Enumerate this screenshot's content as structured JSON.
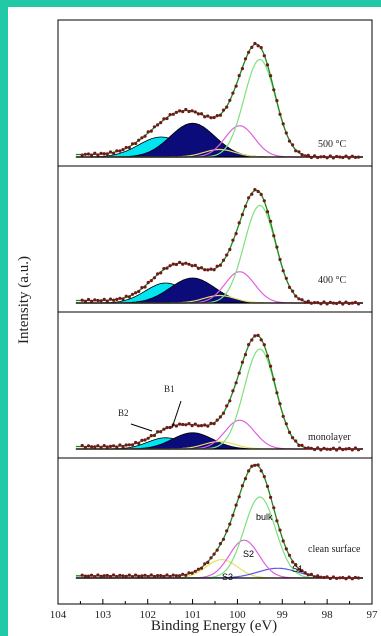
{
  "chart_data": {
    "type": "line",
    "xlabel": "Binding Energy (eV)",
    "ylabel": "Intensity (a.u.)",
    "xlim": [
      104,
      97
    ],
    "x_reversed": true,
    "x_ticks": [
      "104",
      "103",
      "102",
      "101",
      "100",
      "99",
      "98",
      "97"
    ],
    "grid": false,
    "panels": [
      {
        "label": "500 °C",
        "components": {
          "bulk": {
            "center": 99.5,
            "height": 0.78,
            "width": 0.35
          },
          "S2": {
            "center": 99.95,
            "height": 0.25,
            "width": 0.33
          },
          "S3": {
            "center": 100.4,
            "height": 0.06,
            "width": 0.35
          },
          "B1": {
            "center": 101.0,
            "height": 0.27,
            "width": 0.5
          },
          "B2": {
            "center": 101.7,
            "height": 0.16,
            "width": 0.5
          }
        }
      },
      {
        "label": "400 °C",
        "components": {
          "bulk": {
            "center": 99.5,
            "height": 0.78,
            "width": 0.35
          },
          "S2": {
            "center": 99.95,
            "height": 0.25,
            "width": 0.33
          },
          "S3": {
            "center": 100.4,
            "height": 0.06,
            "width": 0.35
          },
          "B1": {
            "center": 101.0,
            "height": 0.2,
            "width": 0.5
          },
          "B2": {
            "center": 101.6,
            "height": 0.16,
            "width": 0.45
          }
        }
      },
      {
        "label": "monolayer",
        "component_labels": [
          "B1",
          "B2"
        ],
        "components": {
          "bulk": {
            "center": 99.5,
            "height": 0.8,
            "width": 0.35
          },
          "S2": {
            "center": 99.95,
            "height": 0.23,
            "width": 0.33
          },
          "S3": {
            "center": 100.4,
            "height": 0.06,
            "width": 0.35
          },
          "B1": {
            "center": 101.0,
            "height": 0.13,
            "width": 0.45
          },
          "B2": {
            "center": 101.6,
            "height": 0.09,
            "width": 0.4
          }
        }
      },
      {
        "label": "clean surface",
        "component_labels": [
          "bulk",
          "S2",
          "S3",
          "S1"
        ],
        "components": {
          "bulk": {
            "center": 99.5,
            "height": 0.75,
            "width": 0.35
          },
          "S2": {
            "center": 99.85,
            "height": 0.35,
            "width": 0.33
          },
          "S3": {
            "center": 100.35,
            "height": 0.17,
            "width": 0.35
          },
          "S1": {
            "center": 99.1,
            "height": 0.09,
            "width": 0.45
          }
        }
      }
    ],
    "colors": {
      "data_points": "#6e1a1a",
      "envelope": "#1a8c1a",
      "bulk": "#7ee07e",
      "S2": "#e060e0",
      "S3": "#e8e060",
      "S1": "#5a5ae0",
      "B1": "#0b0b7a",
      "B2": "#00e5f0",
      "background": "#000000",
      "frame_accent": "#21c9a6"
    }
  }
}
